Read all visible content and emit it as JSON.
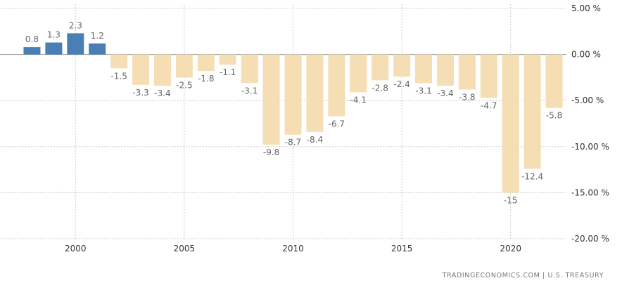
{
  "chart_data": {
    "type": "bar",
    "categories": [
      "1998",
      "1999",
      "2000",
      "2001",
      "2002",
      "2003",
      "2004",
      "2005",
      "2006",
      "2007",
      "2008",
      "2009",
      "2010",
      "2011",
      "2012",
      "2013",
      "2014",
      "2015",
      "2016",
      "2017",
      "2018",
      "2019",
      "2020",
      "2021",
      "2022"
    ],
    "values": [
      0.8,
      1.3,
      2.3,
      1.2,
      -1.5,
      -3.3,
      -3.4,
      -2.5,
      -1.8,
      -1.1,
      -3.1,
      -9.8,
      -8.7,
      -8.4,
      -6.7,
      -4.1,
      -2.8,
      -2.4,
      -3.1,
      -3.4,
      -3.8,
      -4.7,
      -15,
      -12.4,
      -5.8
    ],
    "data_labels": [
      "0.8",
      "1.3",
      "2.3",
      "1.2",
      "-1.5",
      "-3.3",
      "-3.4",
      "-2.5",
      "-1.8",
      "-1.1",
      "-3.1",
      "-9.8",
      "-8.7",
      "-8.4",
      "-6.7",
      "-4.1",
      "-2.8",
      "-2.4",
      "-3.1",
      "-3.4",
      "-3.8",
      "-4.7",
      "-15",
      "-12.4",
      "-5.8"
    ],
    "x_tick_labels": [
      {
        "year": 2000,
        "label": "2000"
      },
      {
        "year": 2005,
        "label": "2005"
      },
      {
        "year": 2010,
        "label": "2010"
      },
      {
        "year": 2015,
        "label": "2015"
      },
      {
        "year": 2020,
        "label": "2020"
      }
    ],
    "y_ticks": [
      {
        "value": 5,
        "label": "5.00 %"
      },
      {
        "value": 0,
        "label": "0.00 %"
      },
      {
        "value": -5,
        "label": "-5.00 %"
      },
      {
        "value": -10,
        "label": "-10.00 %"
      },
      {
        "value": -15,
        "label": "-15.00 %"
      },
      {
        "value": -20,
        "label": "-20.00 %"
      }
    ],
    "ylim": [
      -20,
      5
    ],
    "y_axis_position": "right",
    "grid": true,
    "colors": {
      "positive": "#4a7fb5",
      "negative": "#f5deb3",
      "grid": "#cccccc",
      "zero_line": "#999999"
    }
  },
  "source": "TRADINGECONOMICS.COM  |  U.S. TREASURY"
}
